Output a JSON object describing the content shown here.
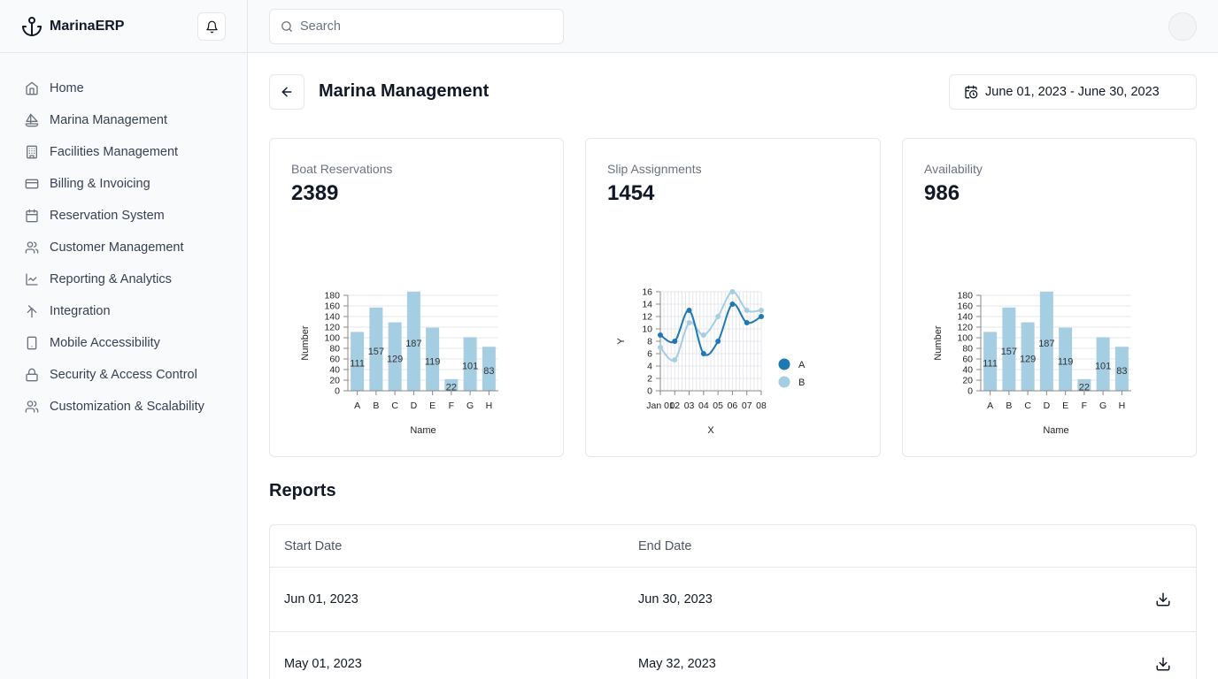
{
  "app": {
    "name": "MarinaERP"
  },
  "sidebar": {
    "items": [
      {
        "label": "Home",
        "icon": "home-icon"
      },
      {
        "label": "Marina Management",
        "icon": "sailboat-icon"
      },
      {
        "label": "Facilities Management",
        "icon": "building-icon"
      },
      {
        "label": "Billing & Invoicing",
        "icon": "credit-card-icon"
      },
      {
        "label": "Reservation System",
        "icon": "calendar-icon"
      },
      {
        "label": "Customer Management",
        "icon": "users-icon"
      },
      {
        "label": "Reporting & Analytics",
        "icon": "line-chart-icon"
      },
      {
        "label": "Integration",
        "icon": "merge-icon"
      },
      {
        "label": "Mobile Accessibility",
        "icon": "smartphone-icon"
      },
      {
        "label": "Security & Access Control",
        "icon": "lock-icon"
      },
      {
        "label": "Customization & Scalability",
        "icon": "users-icon"
      }
    ]
  },
  "search": {
    "placeholder": "Search"
  },
  "header": {
    "title": "Marina Management",
    "date_range": "June 01, 2023 - June 30, 2023"
  },
  "cards": [
    {
      "label": "Boat Reservations",
      "value": "2389"
    },
    {
      "label": "Slip Assignments",
      "value": "1454"
    },
    {
      "label": "Availability",
      "value": "986"
    }
  ],
  "chart_data": [
    {
      "type": "bar",
      "categories": [
        "A",
        "B",
        "C",
        "D",
        "E",
        "F",
        "G",
        "H"
      ],
      "values": [
        111,
        157,
        129,
        187,
        119,
        22,
        101,
        83
      ],
      "xlabel": "Name",
      "ylabel": "Number",
      "ylim": [
        0,
        180
      ],
      "yticks": [
        0,
        20,
        40,
        60,
        80,
        100,
        120,
        140,
        160,
        180
      ],
      "color": "#a6cee3",
      "grid": true
    },
    {
      "type": "line",
      "x": [
        "Jan 01",
        "02",
        "03",
        "04",
        "05",
        "06",
        "07",
        "08"
      ],
      "xtick_labels": [
        "Jan 01",
        "02",
        "03",
        "04",
        "05",
        "06",
        "07",
        "08"
      ],
      "series": [
        {
          "name": "A",
          "values": [
            9,
            8,
            13,
            6,
            8,
            14,
            11,
            12
          ],
          "color": "#1f78b4"
        },
        {
          "name": "B",
          "values": [
            7,
            5,
            11,
            9,
            12,
            16,
            13,
            13
          ],
          "color": "#a6cee3"
        }
      ],
      "xlabel": "X",
      "ylabel": "Y",
      "ylim": [
        0,
        16
      ],
      "yticks": [
        0,
        2,
        4,
        6,
        8,
        10,
        12,
        14,
        16
      ],
      "grid": true,
      "legend": "right"
    },
    {
      "type": "bar",
      "categories": [
        "A",
        "B",
        "C",
        "D",
        "E",
        "F",
        "G",
        "H"
      ],
      "values": [
        111,
        157,
        129,
        187,
        119,
        22,
        101,
        83
      ],
      "xlabel": "Name",
      "ylabel": "Number",
      "ylim": [
        0,
        180
      ],
      "yticks": [
        0,
        20,
        40,
        60,
        80,
        100,
        120,
        140,
        160,
        180
      ],
      "color": "#a6cee3",
      "grid": true
    }
  ],
  "reports": {
    "title": "Reports",
    "columns": [
      "Start Date",
      "End Date"
    ],
    "rows": [
      {
        "start": "Jun 01, 2023",
        "end": "Jun 30, 2023"
      },
      {
        "start": "May 01, 2023",
        "end": "May 32, 2023"
      }
    ]
  }
}
